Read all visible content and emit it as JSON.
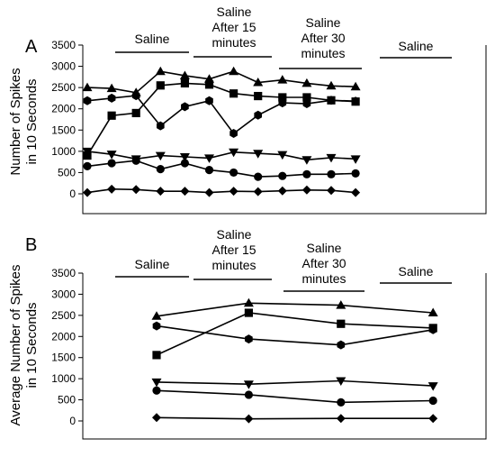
{
  "chart_data": [
    {
      "panel_label": "A",
      "type": "line",
      "ylabel_lines": [
        "Number of Spikes",
        "in 10 Seconds"
      ],
      "ylim": [
        0,
        3500
      ],
      "yticks": [
        0,
        500,
        1000,
        1500,
        2000,
        2500,
        3000,
        3500
      ],
      "phases": [
        {
          "label_lines": [
            "Saline"
          ]
        },
        {
          "label_lines": [
            "Saline",
            "After 15",
            "minutes"
          ]
        },
        {
          "label_lines": [
            "Saline",
            "After 30",
            "minutes"
          ]
        },
        {
          "label_lines": [
            "Saline"
          ]
        }
      ],
      "x": [
        1,
        2,
        3,
        4,
        5,
        6,
        7,
        8,
        9,
        10,
        11,
        12,
        13,
        14,
        15,
        16
      ],
      "series": [
        {
          "marker": "triangle-up",
          "values": [
            2500,
            2480,
            2380,
            2880,
            2780,
            2700,
            2880,
            2620,
            2680,
            2600,
            2540,
            2520,
            null,
            null,
            null,
            null
          ]
        },
        {
          "marker": "square",
          "values": [
            900,
            1840,
            1900,
            2550,
            2600,
            2570,
            2360,
            2300,
            2270,
            2270,
            2200,
            2170,
            null,
            null,
            null,
            null
          ]
        },
        {
          "marker": "hexagon",
          "values": [
            2190,
            2250,
            2310,
            1600,
            2050,
            2190,
            1420,
            1850,
            2140,
            2120,
            2200,
            2180,
            null,
            null,
            null,
            null
          ]
        },
        {
          "marker": "triangle-down",
          "values": [
            1000,
            930,
            820,
            900,
            870,
            840,
            980,
            950,
            920,
            800,
            850,
            820,
            null,
            null,
            null,
            null
          ]
        },
        {
          "marker": "circle",
          "values": [
            650,
            720,
            780,
            580,
            720,
            560,
            500,
            400,
            420,
            460,
            460,
            480,
            null,
            null,
            null,
            null
          ]
        },
        {
          "marker": "diamond",
          "values": [
            30,
            110,
            100,
            60,
            60,
            30,
            60,
            50,
            70,
            90,
            80,
            30,
            null,
            null,
            null,
            null
          ]
        }
      ]
    },
    {
      "panel_label": "B",
      "type": "line",
      "ylabel_lines": [
        "Average Number of Spikes",
        "in 10 Seconds"
      ],
      "ylim": [
        0,
        3500
      ],
      "yticks": [
        0,
        500,
        1000,
        1500,
        2000,
        2500,
        3000,
        3500
      ],
      "phases": [
        {
          "label_lines": [
            "Saline"
          ]
        },
        {
          "label_lines": [
            "Saline",
            "After 15",
            "minutes"
          ]
        },
        {
          "label_lines": [
            "Saline",
            "After 30",
            "minutes"
          ]
        },
        {
          "label_lines": [
            "Saline"
          ]
        }
      ],
      "x": [
        1,
        2,
        3,
        4
      ],
      "series": [
        {
          "marker": "triangle-up",
          "values": [
            2480,
            2790,
            2740,
            2560
          ]
        },
        {
          "marker": "square",
          "values": [
            1560,
            2560,
            2300,
            2200
          ]
        },
        {
          "marker": "hexagon",
          "values": [
            2250,
            1940,
            1800,
            2160
          ]
        },
        {
          "marker": "triangle-down",
          "values": [
            920,
            870,
            950,
            830
          ]
        },
        {
          "marker": "circle",
          "values": [
            720,
            620,
            440,
            480
          ]
        },
        {
          "marker": "diamond",
          "values": [
            80,
            50,
            60,
            60
          ]
        }
      ]
    }
  ]
}
